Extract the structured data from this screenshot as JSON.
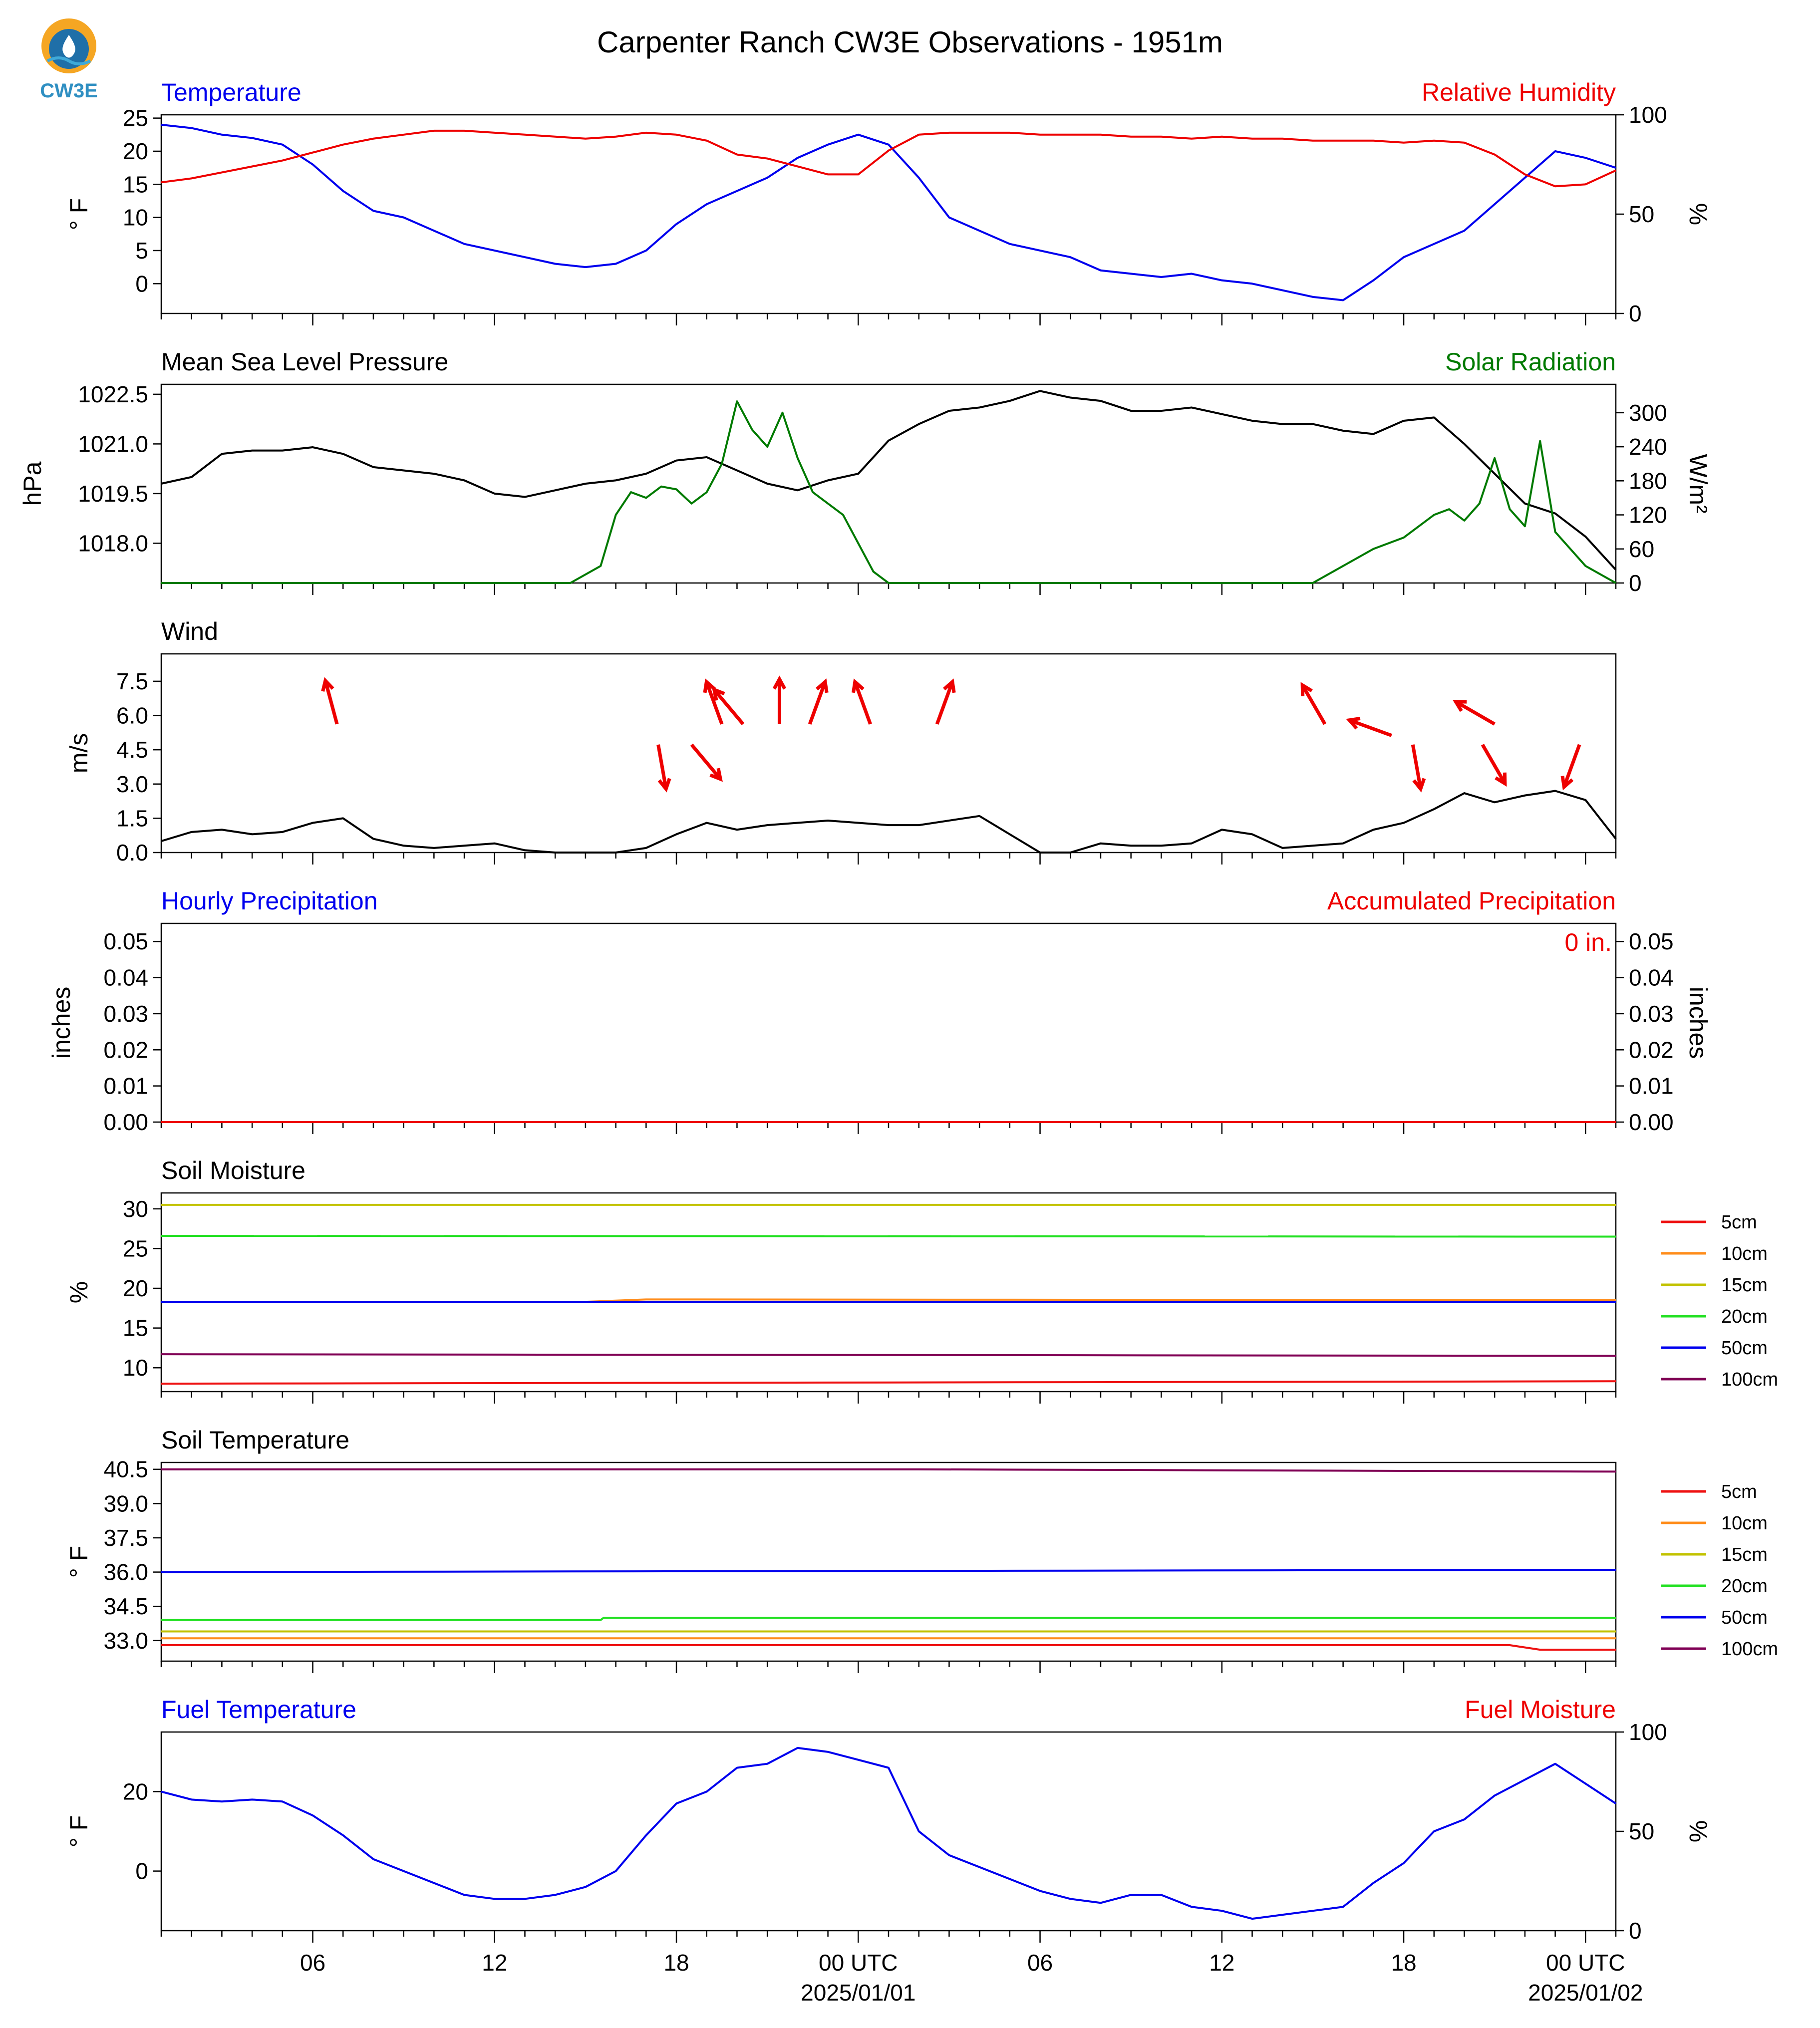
{
  "page": {
    "title": "Carpenter Ranch CW3E Observations - 1951m",
    "logo_text": "CW3E"
  },
  "x_axis": {
    "hour_range": [
      0,
      48
    ],
    "tick_hours": [
      5,
      11,
      17,
      23,
      29,
      35,
      41,
      47
    ],
    "tick_labels": [
      "06",
      "12",
      "18",
      "00 UTC",
      "06",
      "12",
      "18",
      "00 UTC"
    ],
    "date_labels": [
      {
        "hour": 23,
        "text": "2025/01/01"
      },
      {
        "hour": 47,
        "text": "2025/01/02"
      }
    ]
  },
  "colors": {
    "blue": "#0000ee",
    "red": "#ee0000",
    "green": "#007a00",
    "black": "#000000",
    "c5cm": "#ee1111",
    "c10cm": "#ff8c1a",
    "c15cm": "#c2c200",
    "c20cm": "#22e022",
    "c50cm": "#0000ee",
    "c100cm": "#800055"
  },
  "chart_data": [
    {
      "id": "temp-rh",
      "type": "line",
      "title_left": "Temperature",
      "title_right": "Relative Humidity",
      "ylabel_left": "° F",
      "ylabel_right": "%",
      "ylim_left": [
        -4.5,
        25.5
      ],
      "ylim_right": [
        0,
        100
      ],
      "yticks_left": [
        0,
        5,
        10,
        15,
        20,
        25
      ],
      "yticks_right": [
        0,
        50,
        100
      ],
      "series": [
        {
          "name": "Temperature",
          "axis": "left",
          "color": "blue",
          "x": [
            0,
            1,
            2,
            3,
            4,
            5,
            6,
            7,
            8,
            9,
            10,
            11,
            12,
            13,
            14,
            15,
            16,
            17,
            18,
            19,
            20,
            21,
            22,
            23,
            24,
            25,
            26,
            27,
            28,
            29,
            30,
            31,
            32,
            33,
            34,
            35,
            36,
            37,
            38,
            39,
            40,
            41,
            42,
            43,
            44,
            45,
            46,
            47,
            48
          ],
          "y": [
            24,
            23.5,
            22.5,
            22,
            21,
            18,
            14,
            11,
            10,
            8,
            6,
            5,
            4,
            3,
            2.5,
            3,
            5,
            9,
            12,
            14,
            16,
            19,
            21,
            22.5,
            21,
            16,
            10,
            8,
            6,
            5,
            4,
            2,
            1.5,
            1,
            1.5,
            0.5,
            0,
            -1,
            -2,
            -2.5,
            0.5,
            4,
            6,
            8,
            12,
            16,
            20,
            19,
            17.5
          ]
        },
        {
          "name": "Relative Humidity",
          "axis": "right",
          "color": "red",
          "x": [
            0,
            1,
            2,
            3,
            4,
            5,
            6,
            7,
            8,
            9,
            10,
            11,
            12,
            13,
            14,
            15,
            16,
            17,
            18,
            19,
            20,
            21,
            22,
            23,
            24,
            25,
            26,
            27,
            28,
            29,
            30,
            31,
            32,
            33,
            34,
            35,
            36,
            37,
            38,
            39,
            40,
            41,
            42,
            43,
            44,
            45,
            46,
            47,
            48
          ],
          "y": [
            66,
            68,
            71,
            74,
            77,
            81,
            85,
            88,
            90,
            92,
            92,
            91,
            90,
            89,
            88,
            89,
            91,
            90,
            87,
            80,
            78,
            74,
            70,
            70,
            82,
            90,
            91,
            91,
            91,
            90,
            90,
            90,
            89,
            89,
            88,
            89,
            88,
            88,
            87,
            87,
            87,
            86,
            87,
            86,
            80,
            70,
            64,
            65,
            72
          ]
        }
      ]
    },
    {
      "id": "pressure-solar",
      "type": "line",
      "title_left": "Mean Sea Level Pressure",
      "title_right": "Solar Radiation",
      "ylabel_left": "hPa",
      "ylabel_right": "W/m²",
      "ylim_left": [
        1016.8,
        1022.8
      ],
      "ylim_right": [
        0,
        350
      ],
      "yticks_left": [
        1018.0,
        1019.5,
        1021.0,
        1022.5
      ],
      "yticks_left_labels": [
        "1018.0",
        "1019.5",
        "1021.0",
        "1022.5"
      ],
      "yticks_right": [
        0,
        60,
        120,
        180,
        240,
        300
      ],
      "series": [
        {
          "name": "Mean Sea Level Pressure",
          "axis": "left",
          "color": "black",
          "x": [
            0,
            1,
            2,
            3,
            4,
            5,
            6,
            7,
            8,
            9,
            10,
            11,
            12,
            13,
            14,
            15,
            16,
            17,
            18,
            19,
            20,
            21,
            22,
            23,
            24,
            25,
            26,
            27,
            28,
            29,
            30,
            31,
            32,
            33,
            34,
            35,
            36,
            37,
            38,
            39,
            40,
            41,
            42,
            43,
            44,
            45,
            46,
            47,
            48
          ],
          "y": [
            1019.8,
            1020.0,
            1020.7,
            1020.8,
            1020.8,
            1020.9,
            1020.7,
            1020.3,
            1020.2,
            1020.1,
            1019.9,
            1019.5,
            1019.4,
            1019.6,
            1019.8,
            1019.9,
            1020.1,
            1020.5,
            1020.6,
            1020.2,
            1019.8,
            1019.6,
            1019.9,
            1020.1,
            1021.1,
            1021.6,
            1022.0,
            1022.1,
            1022.3,
            1022.6,
            1022.4,
            1022.3,
            1022.0,
            1022.0,
            1022.1,
            1021.9,
            1021.7,
            1021.6,
            1021.6,
            1021.4,
            1021.3,
            1021.7,
            1021.8,
            1021.0,
            1020.1,
            1019.2,
            1018.9,
            1018.2,
            1017.2
          ]
        },
        {
          "name": "Solar Radiation",
          "axis": "right",
          "color": "green",
          "x": [
            0,
            13.5,
            14.5,
            15.0,
            15.5,
            16.0,
            16.5,
            17.0,
            17.5,
            18.0,
            18.5,
            19.0,
            19.5,
            20.0,
            20.5,
            21.0,
            21.5,
            22.0,
            22.5,
            23.0,
            23.5,
            24.0,
            38.0,
            39.0,
            40.0,
            41.0,
            42.0,
            42.5,
            43.0,
            43.5,
            44.0,
            44.5,
            45.0,
            45.5,
            46.0,
            46.5,
            47.0,
            48.0
          ],
          "y": [
            0,
            0,
            30,
            120,
            160,
            150,
            170,
            165,
            140,
            160,
            210,
            320,
            270,
            240,
            300,
            220,
            160,
            140,
            120,
            70,
            20,
            0,
            0,
            30,
            60,
            80,
            120,
            130,
            110,
            140,
            220,
            130,
            100,
            250,
            90,
            60,
            30,
            0
          ]
        }
      ]
    },
    {
      "id": "wind",
      "type": "line",
      "title_left": "Wind",
      "ylabel_left": "m/s",
      "ylim_left": [
        0,
        8.7
      ],
      "yticks_left": [
        0.0,
        1.5,
        3.0,
        4.5,
        6.0,
        7.5
      ],
      "yticks_left_labels": [
        "0.0",
        "1.5",
        "3.0",
        "4.5",
        "6.0",
        "7.5"
      ],
      "series": [
        {
          "name": "Wind Speed",
          "axis": "left",
          "color": "black",
          "x": [
            0,
            1,
            2,
            3,
            4,
            5,
            6,
            7,
            8,
            9,
            10,
            11,
            12,
            13,
            14,
            15,
            16,
            17,
            18,
            19,
            20,
            21,
            22,
            23,
            24,
            25,
            26,
            27,
            28,
            29,
            30,
            31,
            32,
            33,
            34,
            35,
            36,
            37,
            38,
            39,
            40,
            41,
            42,
            43,
            44,
            45,
            46,
            47,
            48
          ],
          "y": [
            0.5,
            0.9,
            1.0,
            0.8,
            0.9,
            1.3,
            1.5,
            0.6,
            0.3,
            0.2,
            0.3,
            0.4,
            0.1,
            0,
            0,
            0,
            0.2,
            0.8,
            1.3,
            1.0,
            1.2,
            1.3,
            1.4,
            1.3,
            1.2,
            1.2,
            1.4,
            1.6,
            0.8,
            0,
            0,
            0.4,
            0.3,
            0.3,
            0.4,
            1.0,
            0.8,
            0.2,
            0.3,
            0.4,
            1.0,
            1.3,
            1.9,
            2.6,
            2.2,
            2.5,
            2.7,
            2.3,
            0.6
          ]
        },
        {
          "name": "Wind Direction",
          "axis": "left",
          "color": "red",
          "type": "arrows",
          "x": [
            5.8,
            16.4,
            17.5,
            18.5,
            19.2,
            20.4,
            21.4,
            23.4,
            25.6,
            38.4,
            40.6,
            41.3,
            43.6,
            44.0,
            46.8
          ],
          "y": [
            6.5,
            5.6,
            5.6,
            6.5,
            6.5,
            6.5,
            6.5,
            6.5,
            6.5,
            6.5,
            6.0,
            5.6,
            5.6,
            6.5,
            5.6
          ],
          "angle_deg": [
            -15,
            170,
            140,
            -20,
            -40,
            0,
            20,
            -20,
            20,
            -30,
            -70,
            170,
            150,
            -60,
            200
          ]
        }
      ]
    },
    {
      "id": "precipitation",
      "type": "line",
      "title_left": "Hourly Precipitation",
      "title_right": "Accumulated Precipitation",
      "ylabel_left": "inches",
      "ylabel_right": "inches",
      "ylim_left": [
        0,
        0.055
      ],
      "ylim_right": [
        0,
        0.055
      ],
      "yticks_left": [
        0.0,
        0.01,
        0.02,
        0.03,
        0.04,
        0.05
      ],
      "yticks_left_labels": [
        "0.00",
        "0.01",
        "0.02",
        "0.03",
        "0.04",
        "0.05"
      ],
      "yticks_right": [
        0.0,
        0.01,
        0.02,
        0.03,
        0.04,
        0.05
      ],
      "yticks_right_labels": [
        "0.00",
        "0.01",
        "0.02",
        "0.03",
        "0.04",
        "0.05"
      ],
      "annotation": "0 in.",
      "series": [
        {
          "name": "Hourly Precipitation",
          "axis": "left",
          "color": "blue",
          "x": [
            0,
            48
          ],
          "y": [
            0,
            0
          ]
        },
        {
          "name": "Accumulated Precipitation",
          "axis": "right",
          "color": "red",
          "x": [
            0,
            48
          ],
          "y": [
            0,
            0
          ]
        }
      ]
    },
    {
      "id": "soil-moisture",
      "type": "line",
      "title_left": "Soil Moisture",
      "ylabel_left": "%",
      "ylim_left": [
        7,
        32
      ],
      "yticks_left": [
        10,
        15,
        20,
        25,
        30
      ],
      "legend_position": "right",
      "series": [
        {
          "name": "5cm",
          "color": "c5cm",
          "x": [
            0,
            48
          ],
          "y": [
            8.0,
            8.3
          ]
        },
        {
          "name": "10cm",
          "color": "c10cm",
          "x": [
            0,
            14,
            16,
            48
          ],
          "y": [
            18.3,
            18.3,
            18.6,
            18.5
          ]
        },
        {
          "name": "15cm",
          "color": "c15cm",
          "x": [
            0,
            48
          ],
          "y": [
            30.5,
            30.5
          ]
        },
        {
          "name": "20cm",
          "color": "c20cm",
          "x": [
            0,
            48
          ],
          "y": [
            26.6,
            26.5
          ]
        },
        {
          "name": "50cm",
          "color": "c50cm",
          "x": [
            0,
            48
          ],
          "y": [
            18.3,
            18.3
          ]
        },
        {
          "name": "100cm",
          "color": "c100cm",
          "x": [
            0,
            48
          ],
          "y": [
            11.7,
            11.5
          ]
        }
      ]
    },
    {
      "id": "soil-temperature",
      "type": "line",
      "title_left": "Soil Temperature",
      "ylabel_left": "° F",
      "ylim_left": [
        32.1,
        40.8
      ],
      "yticks_left": [
        33.0,
        34.5,
        36.0,
        37.5,
        39.0,
        40.5
      ],
      "yticks_left_labels": [
        "33.0",
        "34.5",
        "36.0",
        "37.5",
        "39.0",
        "40.5"
      ],
      "legend_position": "right",
      "series": [
        {
          "name": "5cm",
          "color": "c5cm",
          "x": [
            0,
            44.5,
            45.5,
            48
          ],
          "y": [
            32.8,
            32.8,
            32.6,
            32.6
          ]
        },
        {
          "name": "10cm",
          "color": "c10cm",
          "x": [
            0,
            48
          ],
          "y": [
            33.1,
            33.1
          ]
        },
        {
          "name": "15cm",
          "color": "c15cm",
          "x": [
            0,
            48
          ],
          "y": [
            33.4,
            33.4
          ]
        },
        {
          "name": "20cm",
          "color": "c20cm",
          "x": [
            0,
            14.5,
            14.6,
            48
          ],
          "y": [
            33.9,
            33.9,
            34.0,
            34.0
          ]
        },
        {
          "name": "50cm",
          "color": "c50cm",
          "x": [
            0,
            48
          ],
          "y": [
            36.0,
            36.1
          ]
        },
        {
          "name": "100cm",
          "color": "c100cm",
          "x": [
            0,
            25,
            48
          ],
          "y": [
            40.5,
            40.5,
            40.4
          ]
        }
      ]
    },
    {
      "id": "fuel",
      "type": "line",
      "title_left": "Fuel Temperature",
      "title_right": "Fuel Moisture",
      "ylabel_left": "° F",
      "ylabel_right": "%",
      "ylim_left": [
        -15,
        35
      ],
      "ylim_right": [
        0,
        100
      ],
      "yticks_left": [
        0,
        20
      ],
      "yticks_right": [
        0,
        50,
        100
      ],
      "series": [
        {
          "name": "Fuel Temperature",
          "axis": "left",
          "color": "blue",
          "x": [
            0,
            1,
            2,
            3,
            4,
            5,
            6,
            7,
            8,
            9,
            10,
            11,
            12,
            13,
            14,
            15,
            16,
            17,
            18,
            19,
            20,
            21,
            22,
            23,
            24,
            25,
            26,
            27,
            28,
            29,
            30,
            31,
            32,
            33,
            34,
            35,
            36,
            37,
            38,
            39,
            40,
            41,
            42,
            43,
            44,
            45,
            46,
            47,
            48
          ],
          "y": [
            20,
            18,
            17.5,
            18,
            17.5,
            14,
            9,
            3,
            0,
            -3,
            -6,
            -7,
            -7,
            -6,
            -4,
            0,
            9,
            17,
            20,
            26,
            27,
            31,
            30,
            28,
            26,
            10,
            4,
            1,
            -2,
            -5,
            -7,
            -8,
            -6,
            -6,
            -9,
            -10,
            -12,
            -11,
            -10,
            -9,
            -3,
            2,
            10,
            13,
            19,
            23,
            27,
            22,
            17
          ]
        }
      ]
    }
  ]
}
